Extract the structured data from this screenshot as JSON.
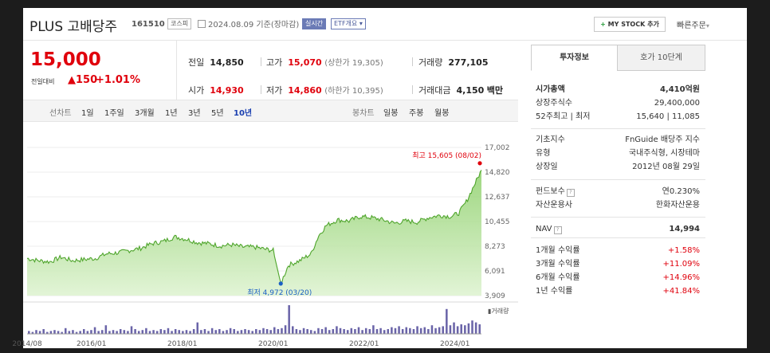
{
  "header": {
    "name": "PLUS 고배당주",
    "code": "161510",
    "market_badge": "코스피",
    "date_text": "2024.08.09 기준(장마감)",
    "live_badge": "실시간",
    "etf_badge": "ETF개요",
    "mystock_plus": "+",
    "mystock_label": "MY STOCK 추가",
    "quick_order": "빠른주문"
  },
  "quote": {
    "price": "15,000",
    "change_label": "전일대비",
    "change": "▲150",
    "change_pct": "+1.01%",
    "prev_label": "전일",
    "prev": "14,850",
    "high_label": "고가",
    "high": "15,070",
    "upper_limit": "(상한가 19,305)",
    "volume_label": "거래량",
    "volume": "277,105",
    "open_label": "시가",
    "open": "14,930",
    "low_label": "저가",
    "low": "14,860",
    "lower_limit": "(하한가 10,395)",
    "value_label": "거래대금",
    "value": "4,150",
    "value_unit": "백만"
  },
  "chart_tabs": {
    "line_label": "선차트",
    "line": [
      "1일",
      "1주일",
      "3개월",
      "1년",
      "3년",
      "5년",
      "10년"
    ],
    "selected": "10년",
    "candle_label": "봉차트",
    "candle": [
      "일봉",
      "주봉",
      "월봉"
    ]
  },
  "chart_data": {
    "type": "area",
    "title": "",
    "xlabel": "",
    "ylabel": "",
    "x_ticks": [
      "2014/08",
      "2016/01",
      "2018/01",
      "2020/01",
      "2022/01",
      "2024/01"
    ],
    "y_ticks": [
      "17,002",
      "14,820",
      "12,637",
      "10,455",
      "8,273",
      "6,091",
      "3,909"
    ],
    "ylim": [
      3909,
      17002
    ],
    "grid": true,
    "series": [
      {
        "x": [
          "2014/08",
          "2014/11",
          "2015/02",
          "2015/05",
          "2015/08",
          "2015/11",
          "2016/02",
          "2016/05",
          "2016/08",
          "2016/11",
          "2017/02",
          "2017/05",
          "2017/08",
          "2017/11",
          "2018/02",
          "2018/05",
          "2018/08",
          "2018/11",
          "2019/02",
          "2019/05",
          "2019/08",
          "2019/11",
          "2020/01",
          "2020/03",
          "2020/05",
          "2020/08",
          "2020/11",
          "2021/01",
          "2021/03",
          "2021/06",
          "2021/09",
          "2021/12",
          "2022/03",
          "2022/06",
          "2022/09",
          "2022/12",
          "2023/03",
          "2023/06",
          "2023/09",
          "2023/12",
          "2024/02",
          "2024/04",
          "2024/06",
          "2024/08"
        ],
        "values": [
          7200,
          7000,
          6900,
          7300,
          7000,
          7100,
          7200,
          7600,
          7700,
          7900,
          8100,
          8500,
          8700,
          9100,
          8900,
          8600,
          8500,
          8300,
          8400,
          8200,
          8200,
          8000,
          7900,
          4972,
          6600,
          7000,
          7600,
          9200,
          10100,
          10600,
          10500,
          10900,
          10800,
          10600,
          10300,
          10500,
          10400,
          10800,
          11000,
          10900,
          11200,
          12200,
          13600,
          15000
        ]
      }
    ],
    "annotations": [
      {
        "text": "최고 15,605 (08/02)",
        "x": "2024/08",
        "y": 15605,
        "color": "#e0000c"
      },
      {
        "text": "최저 4,972 (03/20)",
        "x": "2020/03",
        "y": 4972,
        "color": "#1a5fc4"
      }
    ],
    "volume_label": "거래량",
    "volume_series": [
      3,
      2,
      4,
      3,
      5,
      2,
      3,
      4,
      3,
      2,
      6,
      3,
      4,
      2,
      3,
      5,
      3,
      4,
      7,
      3,
      4,
      9,
      3,
      4,
      3,
      5,
      4,
      3,
      8,
      5,
      3,
      4,
      6,
      3,
      4,
      3,
      5,
      4,
      6,
      3,
      5,
      4,
      3,
      4,
      3,
      5,
      12,
      4,
      5,
      3,
      6,
      4,
      5,
      3,
      4,
      6,
      5,
      3,
      4,
      5,
      4,
      3,
      5,
      4,
      6,
      5,
      4,
      7,
      5,
      6,
      9,
      30,
      8,
      5,
      4,
      6,
      5,
      4,
      3,
      6,
      5,
      7,
      4,
      5,
      8,
      6,
      5,
      4,
      6,
      5,
      7,
      4,
      6,
      5,
      9,
      5,
      6,
      4,
      5,
      7,
      6,
      8,
      5,
      7,
      6,
      5,
      8,
      6,
      7,
      5,
      9,
      6,
      7,
      8,
      26,
      9,
      12,
      8,
      10,
      9,
      11,
      14,
      12,
      10
    ]
  },
  "side": {
    "tab_active": "투자정보",
    "tab_other": "호가 10단계",
    "rows1": [
      {
        "label": "시가총액",
        "value": "4,410억원",
        "bold": true
      },
      {
        "label": "상장주식수",
        "value": "29,400,000"
      },
      {
        "label": "52주최고 | 최저",
        "value": "15,640 | 11,085"
      }
    ],
    "rows2": [
      {
        "label": "기초지수",
        "value": "FnGuide 배당주 지수"
      },
      {
        "label": "유형",
        "value": "국내주식형, 시장테마"
      },
      {
        "label": "상장일",
        "value": "2012년 08월 29일"
      }
    ],
    "rows3": [
      {
        "label": "펀드보수",
        "value": "연0.230%",
        "help": true
      },
      {
        "label": "자산운용사",
        "value": "한화자산운용"
      }
    ],
    "nav": {
      "label": "NAV",
      "value": "14,994"
    },
    "returns": [
      {
        "label": "1개월 수익률",
        "value": "+1.58%"
      },
      {
        "label": "3개월 수익률",
        "value": "+11.09%"
      },
      {
        "label": "6개월 수익률",
        "value": "+14.96%"
      },
      {
        "label": "1년 수익률",
        "value": "+41.84%"
      }
    ]
  }
}
